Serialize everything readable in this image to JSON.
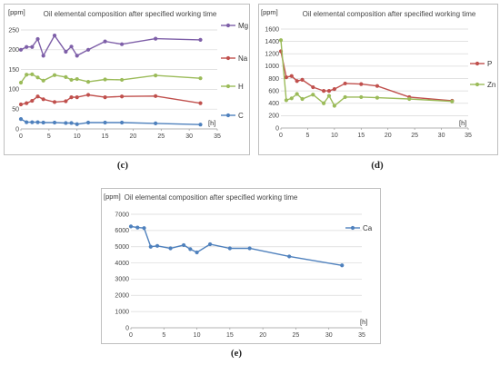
{
  "captions": [
    "(c)",
    "(d)",
    "(e)"
  ],
  "chart_data": [
    {
      "type": "line",
      "title": "Oil elemental composition after specified working time",
      "ylabel": "[ppm]",
      "xlabel": "[h]",
      "xlim": [
        0,
        35
      ],
      "xticks": [
        0,
        5,
        10,
        15,
        20,
        25,
        30,
        35
      ],
      "ylim": [
        0,
        250
      ],
      "yticks": [
        0,
        50,
        100,
        150,
        200,
        250
      ],
      "grid": "horizontal",
      "legend": "right",
      "series": [
        {
          "name": "Mg",
          "color": "#7e5fa8",
          "x": [
            0,
            1,
            2,
            3,
            4,
            6,
            8,
            9,
            10,
            12,
            15,
            18,
            24,
            32
          ],
          "y": [
            200,
            207,
            207,
            227,
            185,
            236,
            195,
            208,
            185,
            200,
            221,
            214,
            228,
            225
          ]
        },
        {
          "name": "Na",
          "color": "#c0504d",
          "x": [
            0,
            1,
            2,
            3,
            4,
            6,
            8,
            9,
            10,
            12,
            15,
            18,
            24,
            32
          ],
          "y": [
            62,
            65,
            71,
            82,
            75,
            68,
            70,
            80,
            80,
            86,
            80,
            82,
            83,
            65
          ]
        },
        {
          "name": "H",
          "color": "#9bbb59",
          "x": [
            0,
            1,
            2,
            3,
            4,
            6,
            8,
            9,
            10,
            12,
            15,
            18,
            24,
            32
          ],
          "y": [
            117,
            137,
            138,
            130,
            122,
            136,
            131,
            124,
            126,
            119,
            125,
            124,
            135,
            128
          ]
        },
        {
          "name": "C",
          "color": "#4f81bd",
          "x": [
            0,
            1,
            2,
            3,
            4,
            6,
            8,
            9,
            10,
            12,
            15,
            18,
            24,
            32
          ],
          "y": [
            25,
            17,
            17,
            17,
            16,
            16,
            15,
            15,
            12,
            16,
            16,
            16,
            14,
            11
          ]
        }
      ]
    },
    {
      "type": "line",
      "title": "Oil elemental composition after specified working time",
      "ylabel": "[ppm]",
      "xlabel": "[h]",
      "xlim": [
        0,
        35
      ],
      "xticks": [
        0,
        5,
        10,
        15,
        20,
        25,
        30,
        35
      ],
      "ylim": [
        0,
        1600
      ],
      "yticks": [
        0,
        200,
        400,
        600,
        800,
        1000,
        1200,
        1400,
        1600
      ],
      "grid": "horizontal",
      "legend": "right",
      "series": [
        {
          "name": "P",
          "color": "#c0504d",
          "x": [
            0,
            1,
            2,
            3,
            4,
            6,
            8,
            9,
            10,
            12,
            15,
            18,
            24,
            32
          ],
          "y": [
            1240,
            820,
            840,
            760,
            780,
            660,
            600,
            600,
            630,
            720,
            710,
            680,
            500,
            440
          ]
        },
        {
          "name": "Zn",
          "color": "#9bbb59",
          "x": [
            0,
            1,
            2,
            3,
            4,
            6,
            8,
            9,
            10,
            12,
            15,
            18,
            24,
            32
          ],
          "y": [
            1420,
            450,
            480,
            550,
            470,
            540,
            400,
            520,
            360,
            500,
            500,
            490,
            470,
            430
          ]
        }
      ]
    },
    {
      "type": "line",
      "title": "Oil elemental composition after specified working time",
      "ylabel": "[ppm]",
      "xlabel": "[h]",
      "xlim": [
        0,
        35
      ],
      "xticks": [
        0,
        5,
        10,
        15,
        20,
        25,
        30,
        35
      ],
      "ylim": [
        0,
        7000
      ],
      "yticks": [
        0,
        1000,
        2000,
        3000,
        4000,
        5000,
        6000,
        7000
      ],
      "grid": "horizontal",
      "legend": "right",
      "series": [
        {
          "name": "Ca",
          "color": "#4f81bd",
          "x": [
            0,
            1,
            2,
            3,
            4,
            6,
            8,
            9,
            10,
            12,
            15,
            18,
            24,
            32
          ],
          "y": [
            6250,
            6180,
            6150,
            5000,
            5050,
            4900,
            5100,
            4850,
            4650,
            5150,
            4900,
            4900,
            4400,
            3850
          ]
        }
      ]
    }
  ]
}
